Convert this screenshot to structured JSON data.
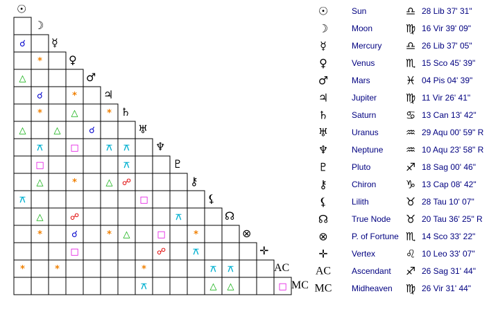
{
  "bodies": [
    {
      "glyph": "☉",
      "name": "Sun",
      "sign": "♎",
      "position": "28 Lib 37' 31\""
    },
    {
      "glyph": "☽",
      "name": "Moon",
      "sign": "♍",
      "position": "16 Vir 39' 09\""
    },
    {
      "glyph": "☿",
      "name": "Mercury",
      "sign": "♎",
      "position": "26 Lib 37' 05\""
    },
    {
      "glyph": "♀",
      "name": "Venus",
      "sign": "♏",
      "position": "15 Sco 45' 39\""
    },
    {
      "glyph": "♂",
      "name": "Mars",
      "sign": "♓",
      "position": "04 Pis 04' 39\""
    },
    {
      "glyph": "♃",
      "name": "Jupiter",
      "sign": "♍",
      "position": "11 Vir 26' 41\""
    },
    {
      "glyph": "♄",
      "name": "Saturn",
      "sign": "♋",
      "position": "13 Can 13' 42\""
    },
    {
      "glyph": "♅",
      "name": "Uranus",
      "sign": "♒",
      "position": "29 Aqu 00' 59\" R"
    },
    {
      "glyph": "♆",
      "name": "Neptune",
      "sign": "♒",
      "position": "10 Aqu 23' 58\" R"
    },
    {
      "glyph": "♇",
      "name": "Pluto",
      "sign": "♐",
      "position": "18 Sag 00' 46\""
    },
    {
      "glyph": "⚷",
      "name": "Chiron",
      "sign": "♑",
      "position": "13 Cap 08' 42\""
    },
    {
      "glyph": "⚸",
      "name": "Lilith",
      "sign": "♉",
      "position": "28 Tau 10' 07\""
    },
    {
      "glyph": "☊",
      "name": "True Node",
      "sign": "♉",
      "position": "20 Tau 36' 25\" R"
    },
    {
      "glyph": "⊗",
      "name": "P. of Fortune",
      "sign": "♏",
      "position": "14 Sco 33' 22\""
    },
    {
      "glyph": "✛",
      "name": "Vertex",
      "sign": "♌",
      "position": "10 Leo 33' 07\""
    },
    {
      "glyph": "AC",
      "name": "Ascendant",
      "sign": "♐",
      "position": "26 Sag 31' 44\""
    },
    {
      "glyph": "MC",
      "name": "Midheaven",
      "sign": "♍",
      "position": "26 Vir 31' 44\""
    }
  ],
  "grid": [
    [
      null
    ],
    [
      {
        "glyph": "☌",
        "color": "#0000cc"
      },
      null
    ],
    [
      null,
      {
        "glyph": "*",
        "color": "#f08000"
      },
      null
    ],
    [
      {
        "glyph": "△",
        "color": "#00aa00"
      },
      null,
      null,
      null
    ],
    [
      null,
      {
        "glyph": "☌",
        "color": "#0000cc"
      },
      null,
      {
        "glyph": "*",
        "color": "#f08000"
      },
      null
    ],
    [
      null,
      {
        "glyph": "*",
        "color": "#f08000"
      },
      null,
      {
        "glyph": "△",
        "color": "#00aa00"
      },
      null,
      {
        "glyph": "*",
        "color": "#f08000"
      }
    ],
    [
      {
        "glyph": "△",
        "color": "#00aa00"
      },
      null,
      {
        "glyph": "△",
        "color": "#00aa00"
      },
      null,
      {
        "glyph": "☌",
        "color": "#0000cc"
      },
      null,
      null
    ],
    [
      null,
      {
        "glyph": "⚻",
        "color": "#00b0d0"
      },
      null,
      {
        "glyph": "□",
        "color": "#e000e0"
      },
      null,
      {
        "glyph": "⚻",
        "color": "#00b0d0"
      },
      {
        "glyph": "⚻",
        "color": "#00b0d0"
      },
      null
    ],
    [
      null,
      {
        "glyph": "□",
        "color": "#e000e0"
      },
      null,
      null,
      null,
      null,
      {
        "glyph": "⚻",
        "color": "#00b0d0"
      },
      null,
      null
    ],
    [
      null,
      {
        "glyph": "△",
        "color": "#00aa00"
      },
      null,
      {
        "glyph": "*",
        "color": "#f08000"
      },
      null,
      {
        "glyph": "△",
        "color": "#00aa00"
      },
      {
        "glyph": "☍",
        "color": "#e00000"
      },
      null,
      null,
      null
    ],
    [
      {
        "glyph": "⚻",
        "color": "#00b0d0"
      },
      null,
      null,
      null,
      null,
      null,
      null,
      {
        "glyph": "□",
        "color": "#e000e0"
      },
      null,
      null,
      null
    ],
    [
      null,
      {
        "glyph": "△",
        "color": "#00aa00"
      },
      null,
      {
        "glyph": "☍",
        "color": "#e00000"
      },
      null,
      null,
      null,
      null,
      null,
      {
        "glyph": "⚻",
        "color": "#00b0d0"
      },
      null,
      null
    ],
    [
      null,
      {
        "glyph": "*",
        "color": "#f08000"
      },
      null,
      {
        "glyph": "☌",
        "color": "#0000cc"
      },
      null,
      {
        "glyph": "*",
        "color": "#f08000"
      },
      {
        "glyph": "△",
        "color": "#00aa00"
      },
      null,
      {
        "glyph": "□",
        "color": "#e000e0"
      },
      null,
      {
        "glyph": "*",
        "color": "#f08000"
      },
      null,
      null
    ],
    [
      null,
      null,
      null,
      {
        "glyph": "□",
        "color": "#e000e0"
      },
      null,
      null,
      null,
      null,
      {
        "glyph": "☍",
        "color": "#e00000"
      },
      null,
      {
        "glyph": "⚻",
        "color": "#00b0d0"
      },
      null,
      null,
      null
    ],
    [
      {
        "glyph": "*",
        "color": "#f08000"
      },
      null,
      {
        "glyph": "*",
        "color": "#f08000"
      },
      null,
      null,
      null,
      null,
      {
        "glyph": "*",
        "color": "#f08000"
      },
      null,
      null,
      null,
      {
        "glyph": "⚻",
        "color": "#00b0d0"
      },
      {
        "glyph": "⚻",
        "color": "#00b0d0"
      },
      null,
      null
    ],
    [
      null,
      null,
      null,
      null,
      null,
      null,
      null,
      {
        "glyph": "⚻",
        "color": "#00b0d0"
      },
      null,
      null,
      null,
      {
        "glyph": "△",
        "color": "#00aa00"
      },
      {
        "glyph": "△",
        "color": "#00aa00"
      },
      null,
      null,
      {
        "glyph": "□",
        "color": "#e000e0"
      }
    ]
  ]
}
